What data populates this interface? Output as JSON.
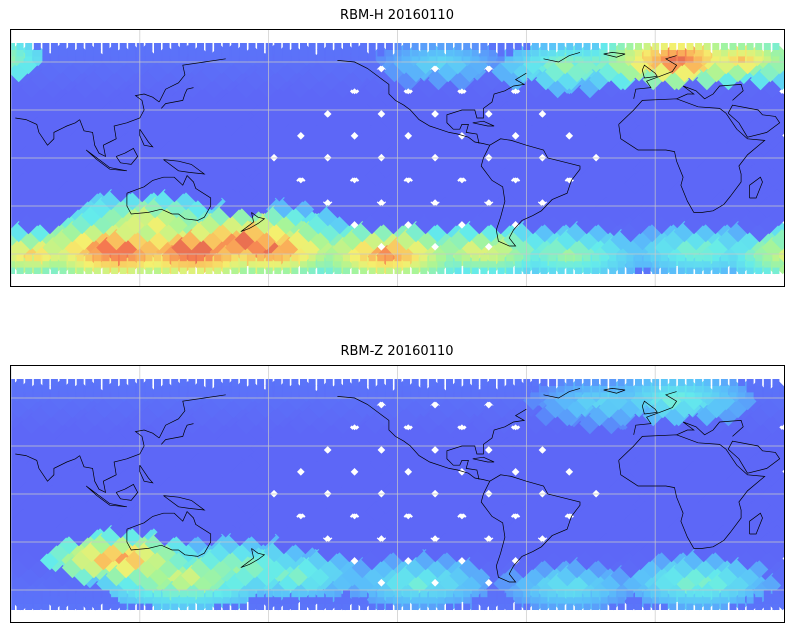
{
  "figure": {
    "panels": [
      {
        "title": "RBM-H 20160110",
        "hot_zones": [
          {
            "lon": -180,
            "lat": -57,
            "level": 0.95,
            "size": 0.5
          },
          {
            "lon": -125,
            "lat": -60,
            "level": 0.9,
            "size": 0.5
          },
          {
            "lon": -80,
            "lat": -58,
            "level": 0.75,
            "size": 0.4
          },
          {
            "lon": -40,
            "lat": -60,
            "level": 0.6,
            "size": 0.4
          },
          {
            "lon": 20,
            "lat": -58,
            "level": 0.55,
            "size": 0.35
          },
          {
            "lon": 70,
            "lat": -60,
            "level": 0.8,
            "size": 0.4
          },
          {
            "lon": 110,
            "lat": -58,
            "level": 0.98,
            "size": 0.6
          },
          {
            "lon": 145,
            "lat": -58,
            "level": 1.0,
            "size": 0.6
          },
          {
            "lon": 168,
            "lat": -52,
            "level": 0.95,
            "size": 0.6
          },
          {
            "lon": 125,
            "lat": -40,
            "level": 0.75,
            "size": 0.45
          },
          {
            "lon": -170,
            "lat": -45,
            "level": 0.6,
            "size": 0.3
          },
          {
            "lon": 10,
            "lat": 62,
            "level": 0.95,
            "size": 0.45
          },
          {
            "lon": 40,
            "lat": 62,
            "level": 0.8,
            "size": 0.35
          },
          {
            "lon": -25,
            "lat": 60,
            "level": 0.55,
            "size": 0.3
          },
          {
            "lon": -40,
            "lat": 58,
            "level": 0.6,
            "size": 0.3
          },
          {
            "lon": -100,
            "lat": 60,
            "level": 0.4,
            "size": 0.25
          }
        ]
      },
      {
        "title": "RBM-Z 20160110",
        "hot_zones": [
          {
            "lon": -170,
            "lat": -50,
            "level": 0.55,
            "size": 0.35
          },
          {
            "lon": -110,
            "lat": -55,
            "level": 0.5,
            "size": 0.35
          },
          {
            "lon": -40,
            "lat": -58,
            "level": 0.45,
            "size": 0.3
          },
          {
            "lon": 20,
            "lat": -55,
            "level": 0.55,
            "size": 0.35
          },
          {
            "lon": 110,
            "lat": -40,
            "level": 0.9,
            "size": 0.35
          },
          {
            "lon": 140,
            "lat": -52,
            "level": 0.7,
            "size": 0.5
          },
          {
            "lon": 165,
            "lat": -45,
            "level": 0.6,
            "size": 0.4
          },
          {
            "lon": 10,
            "lat": 60,
            "level": 0.5,
            "size": 0.35
          },
          {
            "lon": -25,
            "lat": 58,
            "level": 0.4,
            "size": 0.3
          }
        ]
      }
    ],
    "colors": {
      "low": "#5f5fff",
      "high": "#c05050",
      "frame": "#000000",
      "grid": "#c8c8c8",
      "coast": "#000000"
    }
  }
}
